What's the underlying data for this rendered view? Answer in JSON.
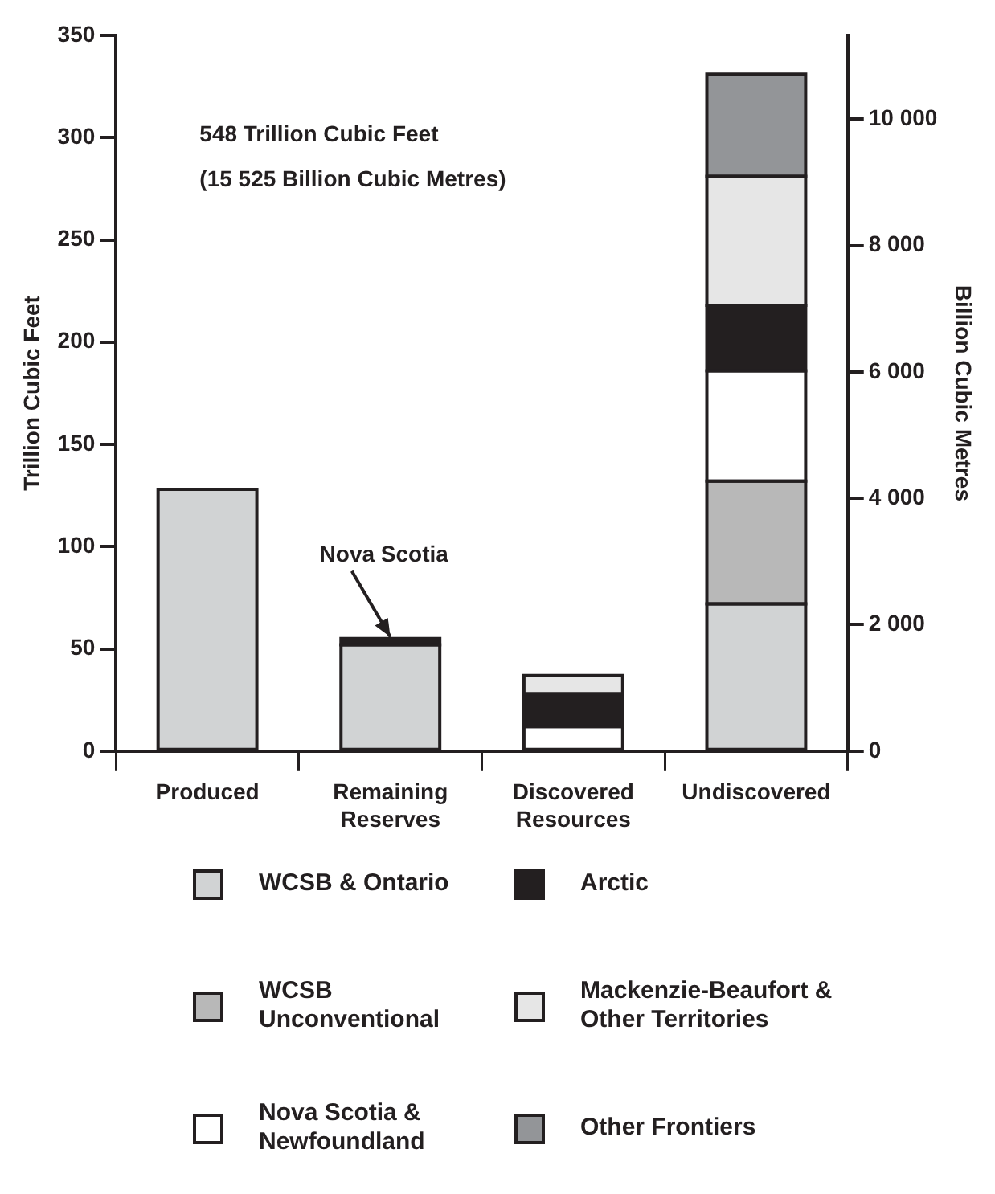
{
  "chart_data": {
    "type": "bar",
    "stacked": true,
    "categories": [
      "Produced",
      "Remaining Reserves",
      "Discovered Resources",
      "Undiscovered"
    ],
    "series": [
      {
        "name": "WCSB & Ontario",
        "color": "#d1d3d4",
        "values": [
          128,
          52,
          null,
          72
        ]
      },
      {
        "name": "WCSB Unconventional",
        "color": "#b8b8b8",
        "values": [
          null,
          null,
          null,
          60
        ]
      },
      {
        "name": "Nova Scotia & Newfoundland",
        "color": "#ffffff",
        "colors": [
          "#ffffff",
          "#231f20",
          "#ffffff",
          "#ffffff"
        ],
        "values": [
          null,
          3,
          12,
          54
        ]
      },
      {
        "name": "Arctic",
        "color": "#231f20",
        "values": [
          null,
          null,
          16,
          32
        ]
      },
      {
        "name": "Mackenzie-Beaufort & Other Territories",
        "color": "#e6e6e6",
        "values": [
          null,
          null,
          9,
          63
        ]
      },
      {
        "name": "Other Frontiers",
        "color": "#939598",
        "values": [
          null,
          null,
          null,
          50
        ]
      }
    ],
    "ylabel": "Trillion Cubic Feet",
    "y2label": "Billion Cubic Metres",
    "ylim": [
      0,
      350
    ],
    "yticks": [
      0,
      50,
      100,
      150,
      200,
      250,
      300,
      350
    ],
    "y2lim": [
      0,
      11326
    ],
    "y2ticks": [
      {
        "value": 0,
        "label": "0"
      },
      {
        "value": 2000,
        "label": "2 000"
      },
      {
        "value": 4000,
        "label": "4 000"
      },
      {
        "value": 6000,
        "label": "6 000"
      },
      {
        "value": 8000,
        "label": "8 000"
      },
      {
        "value": 10000,
        "label": "10 000"
      }
    ],
    "annotations": [
      "548 Trillion Cubic Feet",
      "(15 525 Billion Cubic Metres)",
      {
        "text": "Nova Scotia",
        "x": "Remaining Reserves",
        "y": 55
      }
    ],
    "legend": "bottom",
    "grid": false
  }
}
